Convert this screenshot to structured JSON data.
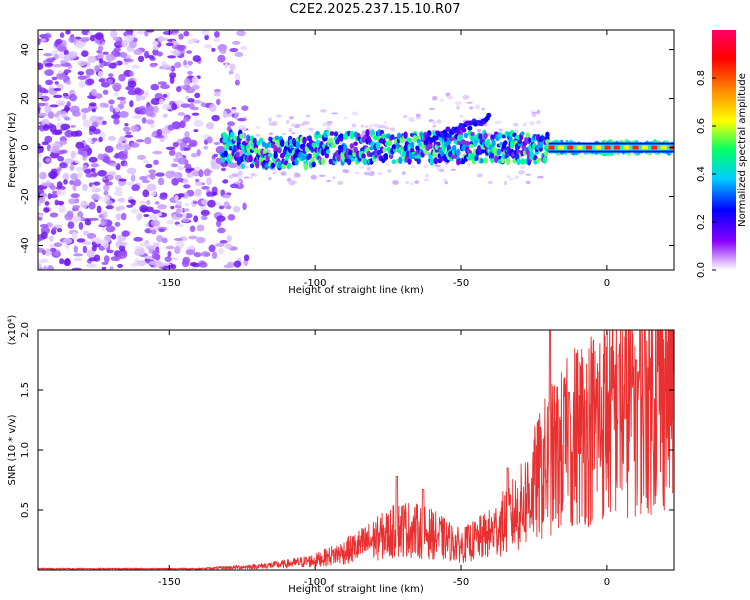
{
  "title": "C2E2.2025.237.15.10.R07",
  "chart_data": [
    {
      "type": "heatmap",
      "xlabel": "Height of straight line (km)",
      "ylabel": "Frequency (Hz)",
      "xlim": [
        -195,
        23
      ],
      "ylim": [
        -50,
        48
      ],
      "xticks": [
        -150,
        -100,
        -50,
        0
      ],
      "yticks": [
        -40,
        -20,
        0,
        20,
        40
      ],
      "colorbar": {
        "label": "Normalized spectral amplitude",
        "range": [
          0,
          1
        ],
        "ticks": [
          "0.0",
          "0.2",
          "0.4",
          "0.6",
          "0.8"
        ],
        "colors": [
          "#ffffff",
          "#8800ff",
          "#0000ff",
          "#00ffff",
          "#00ff66",
          "#ffff00",
          "#ff8800",
          "#ff0000",
          "#ff0066"
        ]
      },
      "features": {
        "noise_region_x": [
          -195,
          -130
        ],
        "band_center_hz": 0,
        "upper_branch": [
          [
            -60,
            5
          ],
          [
            -50,
            8
          ],
          [
            -42,
            12
          ]
        ],
        "strong_line_x": [
          -20,
          23
        ]
      }
    },
    {
      "type": "line",
      "xlabel": "Height of straight line (km)",
      "ylabel": "SNR (10 * v/v)",
      "yscale_label": "(x10⁴)",
      "xlim": [
        -195,
        23
      ],
      "ylim": [
        0,
        2.0
      ],
      "xticks": [
        -150,
        -100,
        -50,
        0
      ],
      "yticks": [
        "0.5",
        "1.0",
        "1.5",
        "2.0"
      ],
      "color": "#e83030",
      "series": [
        {
          "x": [
            -195,
            -180,
            -160,
            -140,
            -130,
            -120,
            -110,
            -100,
            -90,
            -80,
            -70,
            -60,
            -50,
            -40,
            -30,
            -25,
            -20,
            -15,
            -10,
            -5,
            0,
            5,
            10,
            15,
            20,
            23
          ],
          "envelope_mean": [
            0.01,
            0.01,
            0.01,
            0.01,
            0.02,
            0.03,
            0.05,
            0.08,
            0.15,
            0.25,
            0.35,
            0.3,
            0.2,
            0.3,
            0.5,
            0.7,
            0.9,
            1.0,
            1.15,
            1.2,
            1.3,
            1.35,
            1.45,
            1.5,
            1.55,
            1.6
          ],
          "peaks": [
            [
              -72,
              0.78
            ],
            [
              -63,
              0.67
            ],
            [
              -34,
              0.85
            ],
            [
              -19.5,
              2.0
            ],
            [
              -13,
              1.48
            ],
            [
              4,
              1.79
            ],
            [
              10,
              1.75
            ],
            [
              23,
              1.65
            ]
          ]
        }
      ]
    }
  ]
}
